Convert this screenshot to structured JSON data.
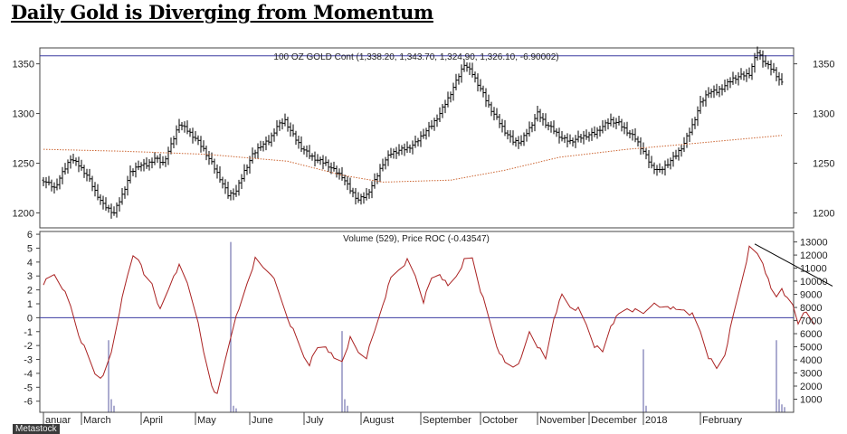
{
  "page_title": "Daily Gold is Diverging from Momentum",
  "watermark": "Metastock",
  "chart_data": [
    {
      "type": "bar",
      "series_kind": "ohlc",
      "title": "100 OZ GOLD Cont (1,338.20, 1,343.70, 1,324.90, 1,326.10, -6.90002)",
      "y_ticks": [
        1200,
        1250,
        1300,
        1350
      ],
      "ylim": [
        1185,
        1366
      ],
      "grid": false,
      "reference_line": 1358,
      "price_anchors": [
        [
          0,
          1233
        ],
        [
          4,
          1225
        ],
        [
          7,
          1240
        ],
        [
          10,
          1255
        ],
        [
          13,
          1248
        ],
        [
          16,
          1238
        ],
        [
          19,
          1222
        ],
        [
          22,
          1208
        ],
        [
          26,
          1200
        ],
        [
          29,
          1218
        ],
        [
          32,
          1240
        ],
        [
          35,
          1248
        ],
        [
          38,
          1248
        ],
        [
          41,
          1255
        ],
        [
          44,
          1250
        ],
        [
          47,
          1268
        ],
        [
          50,
          1290
        ],
        [
          53,
          1283
        ],
        [
          56,
          1275
        ],
        [
          59,
          1264
        ],
        [
          62,
          1250
        ],
        [
          65,
          1235
        ],
        [
          68,
          1218
        ],
        [
          71,
          1222
        ],
        [
          74,
          1242
        ],
        [
          77,
          1258
        ],
        [
          80,
          1268
        ],
        [
          83,
          1272
        ],
        [
          86,
          1287
        ],
        [
          89,
          1293
        ],
        [
          92,
          1278
        ],
        [
          95,
          1266
        ],
        [
          98,
          1258
        ],
        [
          101,
          1253
        ],
        [
          104,
          1250
        ],
        [
          107,
          1243
        ],
        [
          110,
          1237
        ],
        [
          113,
          1223
        ],
        [
          116,
          1213
        ],
        [
          119,
          1218
        ],
        [
          122,
          1232
        ],
        [
          125,
          1250
        ],
        [
          128,
          1260
        ],
        [
          131,
          1263
        ],
        [
          134,
          1265
        ],
        [
          137,
          1270
        ],
        [
          140,
          1280
        ],
        [
          143,
          1288
        ],
        [
          146,
          1300
        ],
        [
          149,
          1315
        ],
        [
          152,
          1332
        ],
        [
          155,
          1350
        ],
        [
          158,
          1340
        ],
        [
          161,
          1325
        ],
        [
          164,
          1308
        ],
        [
          167,
          1295
        ],
        [
          170,
          1282
        ],
        [
          173,
          1272
        ],
        [
          176,
          1272
        ],
        [
          179,
          1285
        ],
        [
          182,
          1300
        ],
        [
          185,
          1290
        ],
        [
          188,
          1283
        ],
        [
          191,
          1275
        ],
        [
          194,
          1272
        ],
        [
          197,
          1275
        ],
        [
          200,
          1278
        ],
        [
          203,
          1280
        ],
        [
          206,
          1287
        ],
        [
          209,
          1293
        ],
        [
          212,
          1290
        ],
        [
          215,
          1282
        ],
        [
          218,
          1275
        ],
        [
          221,
          1262
        ],
        [
          224,
          1247
        ],
        [
          227,
          1242
        ],
        [
          230,
          1250
        ],
        [
          233,
          1258
        ],
        [
          236,
          1270
        ],
        [
          239,
          1288
        ],
        [
          242,
          1310
        ],
        [
          245,
          1322
        ],
        [
          248,
          1322
        ],
        [
          251,
          1328
        ],
        [
          254,
          1335
        ],
        [
          257,
          1338
        ],
        [
          260,
          1340
        ],
        [
          263,
          1362
        ],
        [
          266,
          1350
        ],
        [
          269,
          1343
        ],
        [
          272,
          1330
        ]
      ],
      "moving_average_anchors": [
        [
          0,
          1264
        ],
        [
          30,
          1262
        ],
        [
          60,
          1259
        ],
        [
          90,
          1252
        ],
        [
          110,
          1238
        ],
        [
          125,
          1231
        ],
        [
          150,
          1233
        ],
        [
          170,
          1243
        ],
        [
          190,
          1256
        ],
        [
          215,
          1264
        ],
        [
          240,
          1270
        ],
        [
          272,
          1278
        ]
      ]
    },
    {
      "type": "line",
      "title": "Volume (529), Price ROC (-0.43547)",
      "y_ticks_left": [
        -6,
        -5,
        -4,
        -3,
        -2,
        -1,
        0,
        1,
        2,
        3,
        4,
        5,
        6
      ],
      "ylim_left": [
        -6.8,
        6.2
      ],
      "y_ticks_right": [
        1000,
        2000,
        3000,
        4000,
        5000,
        6000,
        7000,
        8000,
        9000,
        10000,
        11000,
        12000,
        13000
      ],
      "ylim_right": [
        0,
        13800
      ],
      "zero_line": 0,
      "roc_anchors": [
        [
          0,
          2.5
        ],
        [
          4,
          3.1
        ],
        [
          7,
          2.2
        ],
        [
          10,
          0.8
        ],
        [
          13,
          -1.2
        ],
        [
          16,
          -2.6
        ],
        [
          19,
          -4.0
        ],
        [
          22,
          -4.3
        ],
        [
          25,
          -2.5
        ],
        [
          28,
          0.5
        ],
        [
          31,
          3.0
        ],
        [
          33,
          4.5
        ],
        [
          35,
          4.3
        ],
        [
          37,
          3.0
        ],
        [
          40,
          2.5
        ],
        [
          43,
          0.5
        ],
        [
          46,
          2.0
        ],
        [
          48,
          3.1
        ],
        [
          50,
          3.7
        ],
        [
          53,
          2.5
        ],
        [
          56,
          0.5
        ],
        [
          59,
          -2.5
        ],
        [
          62,
          -4.8
        ],
        [
          64,
          -5.6
        ],
        [
          67,
          -3.0
        ],
        [
          70,
          -0.5
        ],
        [
          72,
          0.5
        ],
        [
          75,
          2.5
        ],
        [
          78,
          4.2
        ],
        [
          81,
          3.6
        ],
        [
          84,
          3.2
        ],
        [
          87,
          1.6
        ],
        [
          90,
          0.0
        ],
        [
          93,
          -1.4
        ],
        [
          96,
          -2.8
        ],
        [
          98,
          -3.3
        ],
        [
          101,
          -2.2
        ],
        [
          104,
          -2.0
        ],
        [
          107,
          -3.0
        ],
        [
          110,
          -3.1
        ],
        [
          113,
          -1.5
        ],
        [
          116,
          -2.5
        ],
        [
          119,
          -2.8
        ],
        [
          122,
          -1.0
        ],
        [
          125,
          1.0
        ],
        [
          128,
          2.8
        ],
        [
          131,
          3.5
        ],
        [
          134,
          4.1
        ],
        [
          137,
          3.0
        ],
        [
          140,
          1.2
        ],
        [
          143,
          2.8
        ],
        [
          146,
          3.2
        ],
        [
          149,
          2.2
        ],
        [
          152,
          3.0
        ],
        [
          155,
          4.1
        ],
        [
          158,
          4.3
        ],
        [
          161,
          2.0
        ],
        [
          164,
          0.0
        ],
        [
          167,
          -2.0
        ],
        [
          170,
          -3.3
        ],
        [
          173,
          -3.5
        ],
        [
          176,
          -3.0
        ],
        [
          179,
          -1.0
        ],
        [
          182,
          -2.0
        ],
        [
          185,
          -3.0
        ],
        [
          188,
          0.0
        ],
        [
          191,
          1.6
        ],
        [
          194,
          0.8
        ],
        [
          197,
          0.6
        ],
        [
          200,
          -0.5
        ],
        [
          203,
          -2.0
        ],
        [
          206,
          -2.5
        ],
        [
          209,
          -0.5
        ],
        [
          212,
          0.2
        ],
        [
          215,
          0.7
        ],
        [
          218,
          0.5
        ],
        [
          221,
          0.3
        ],
        [
          224,
          1.0
        ],
        [
          227,
          0.7
        ],
        [
          230,
          0.9
        ],
        [
          233,
          0.5
        ],
        [
          236,
          0.6
        ],
        [
          239,
          0.2
        ],
        [
          242,
          -1.0
        ],
        [
          245,
          -2.8
        ],
        [
          248,
          -3.7
        ],
        [
          251,
          -2.6
        ],
        [
          254,
          0.0
        ],
        [
          257,
          2.5
        ],
        [
          260,
          5.0
        ],
        [
          263,
          4.6
        ],
        [
          265,
          4.0
        ],
        [
          268,
          2.0
        ],
        [
          270,
          1.5
        ],
        [
          272,
          2.2
        ],
        [
          274,
          1.3
        ],
        [
          276,
          0.9
        ],
        [
          278,
          -0.4
        ],
        [
          280,
          0.5
        ],
        [
          282,
          0.0
        ],
        [
          284,
          -0.5
        ]
      ],
      "volume_bars": [
        [
          24,
          5500
        ],
        [
          25,
          1000
        ],
        [
          26,
          500
        ],
        [
          69,
          13000
        ],
        [
          70,
          500
        ],
        [
          71,
          300
        ],
        [
          110,
          6200
        ],
        [
          111,
          1000
        ],
        [
          112,
          500
        ],
        [
          221,
          4800
        ],
        [
          222,
          500
        ],
        [
          270,
          5500
        ],
        [
          271,
          1000
        ],
        [
          272,
          600
        ],
        [
          273,
          400
        ]
      ],
      "trendline_roc": [
        [
          262,
          5.3
        ],
        [
          284,
          2.4
        ]
      ]
    }
  ],
  "x_axis": {
    "labels": [
      {
        "label": "anuar",
        "bar": 0
      },
      {
        "label": "March",
        "bar": 14
      },
      {
        "label": "April",
        "bar": 36
      },
      {
        "label": "May",
        "bar": 56
      },
      {
        "label": "June",
        "bar": 76
      },
      {
        "label": "July",
        "bar": 96
      },
      {
        "label": "August",
        "bar": 117
      },
      {
        "label": "September",
        "bar": 139
      },
      {
        "label": "October",
        "bar": 161
      },
      {
        "label": "November",
        "bar": 182
      },
      {
        "label": "December",
        "bar": 201
      },
      {
        "label": "2018",
        "bar": 221
      },
      {
        "label": "February",
        "bar": 242
      }
    ]
  },
  "colors": {
    "price_bars": "#000000",
    "moving_average": "#cc6633",
    "roc_line": "#aa2222",
    "volume": "#5a5aa0",
    "reference_lines": "#3a3aa0",
    "axes": "#444444"
  }
}
